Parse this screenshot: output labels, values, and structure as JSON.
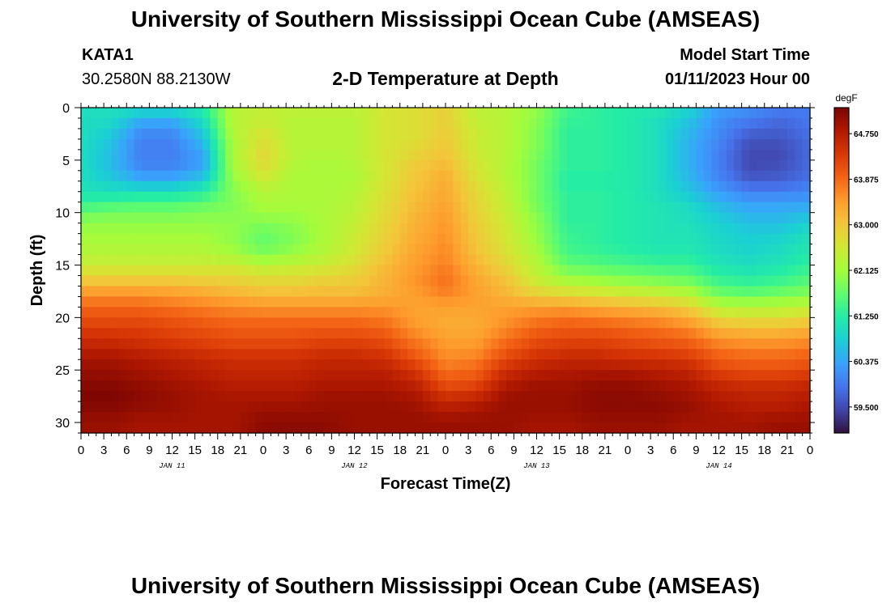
{
  "header": {
    "title": "University of Southern Mississippi Ocean Cube (AMSEAS)",
    "station_id": "KATA1",
    "coordinates": "30.2580N  88.2130W",
    "subtitle": "2-D Temperature at Depth",
    "model_start_label": "Model Start Time",
    "model_start_value": "01/11/2023 Hour 00"
  },
  "footer": {
    "title": "University of Southern Mississippi Ocean Cube (AMSEAS)"
  },
  "chart_data": {
    "type": "heatmap",
    "xlabel": "Forecast Time(Z)",
    "ylabel": "Depth (ft)",
    "xlim": [
      0,
      96
    ],
    "ylim": [
      0,
      31
    ],
    "y_inverted": true,
    "x_tick_labels": [
      "0",
      "3",
      "6",
      "9",
      "12",
      "15",
      "18",
      "21",
      "0",
      "3",
      "6",
      "9",
      "12",
      "15",
      "18",
      "21",
      "0",
      "3",
      "6",
      "9",
      "12",
      "15",
      "18",
      "21",
      "0",
      "3",
      "6",
      "9",
      "12",
      "15",
      "18",
      "21",
      "0"
    ],
    "x_tick_hours": [
      0,
      3,
      6,
      9,
      12,
      15,
      18,
      21,
      24,
      27,
      30,
      33,
      36,
      39,
      42,
      45,
      48,
      51,
      54,
      57,
      60,
      63,
      66,
      69,
      72,
      75,
      78,
      81,
      84,
      87,
      90,
      93,
      96
    ],
    "day_labels": [
      {
        "label": "JAN 11",
        "hour": 12
      },
      {
        "label": "JAN 12",
        "hour": 36
      },
      {
        "label": "JAN 13",
        "hour": 60
      },
      {
        "label": "JAN 14",
        "hour": 84
      }
    ],
    "y_ticks": [
      0,
      5,
      10,
      15,
      20,
      25,
      30
    ],
    "y_tick_labels": [
      "0",
      "5",
      "10",
      "15",
      "20",
      "25",
      "30"
    ],
    "colorbar": {
      "unit": "degF",
      "vmin": 59.0,
      "vmax": 65.25,
      "ticks": [
        64.75,
        63.875,
        63.0,
        62.125,
        61.25,
        60.375,
        59.5
      ],
      "tick_labels": [
        "64.750",
        "63.875",
        "63.000",
        "62.125",
        "61.250",
        "60.375",
        "59.500"
      ],
      "colors": [
        "#30123b",
        "#4145ab",
        "#4675ed",
        "#39a2fc",
        "#1bcfd4",
        "#24eca6",
        "#61fc6c",
        "#a4fc3b",
        "#d1e834",
        "#f3c63a",
        "#fe9b2d",
        "#f36315",
        "#d93806",
        "#b11901",
        "#7a0402"
      ]
    },
    "depth_rows": [
      0,
      1,
      2,
      3,
      4,
      5,
      6,
      7,
      8,
      9,
      10,
      11,
      12,
      13,
      14,
      15,
      16,
      17,
      18,
      19,
      20,
      21,
      22,
      23,
      24,
      25,
      26,
      27,
      28,
      29,
      30,
      31
    ],
    "time_columns": [
      0,
      4,
      8,
      12,
      16,
      20,
      24,
      28,
      32,
      36,
      40,
      44,
      48,
      52,
      56,
      60,
      64,
      68,
      72,
      76,
      80,
      84,
      88,
      92,
      96
    ],
    "values_degF": [
      [
        61.0,
        61.0,
        61.0,
        61.0,
        61.2,
        62.3,
        62.5,
        62.4,
        62.4,
        62.4,
        62.6,
        62.7,
        62.9,
        62.4,
        62.3,
        62.0,
        61.4,
        61.3,
        61.2,
        61.2,
        60.9,
        60.3,
        60.2,
        60.0,
        60.0
      ],
      [
        61.0,
        61.0,
        60.5,
        60.5,
        61.0,
        62.3,
        62.4,
        62.3,
        62.3,
        62.3,
        62.6,
        62.7,
        62.9,
        62.4,
        62.3,
        62.0,
        61.4,
        61.3,
        61.2,
        61.0,
        60.7,
        60.2,
        60.0,
        59.8,
        59.9
      ],
      [
        61.0,
        60.8,
        60.2,
        60.2,
        60.8,
        62.3,
        62.6,
        62.3,
        62.3,
        62.3,
        62.6,
        62.7,
        62.9,
        62.5,
        62.3,
        61.9,
        61.3,
        61.3,
        61.2,
        61.0,
        60.6,
        60.1,
        59.8,
        59.7,
        59.9
      ],
      [
        61.0,
        60.7,
        60.0,
        60.0,
        60.6,
        62.2,
        62.7,
        62.3,
        62.3,
        62.3,
        62.6,
        62.7,
        63.0,
        62.5,
        62.3,
        61.9,
        61.3,
        61.3,
        61.2,
        61.0,
        60.5,
        60.1,
        59.6,
        59.6,
        59.8
      ],
      [
        61.0,
        60.6,
        60.0,
        60.0,
        60.4,
        62.2,
        62.8,
        62.3,
        62.3,
        62.3,
        62.6,
        62.8,
        63.0,
        62.5,
        62.3,
        61.9,
        61.3,
        61.3,
        61.2,
        61.0,
        60.5,
        60.0,
        59.5,
        59.5,
        59.8
      ],
      [
        61.0,
        60.6,
        60.0,
        60.0,
        60.3,
        62.2,
        62.8,
        62.3,
        62.2,
        62.3,
        62.6,
        62.9,
        63.1,
        62.6,
        62.3,
        61.8,
        61.3,
        61.3,
        61.2,
        61.0,
        60.5,
        60.0,
        59.5,
        59.5,
        59.8
      ],
      [
        61.0,
        60.6,
        60.1,
        60.1,
        60.4,
        62.1,
        62.7,
        62.2,
        62.2,
        62.2,
        62.6,
        63.0,
        63.2,
        62.6,
        62.3,
        61.8,
        61.3,
        61.3,
        61.2,
        61.0,
        60.5,
        60.0,
        59.5,
        59.6,
        59.8
      ],
      [
        61.0,
        60.8,
        60.5,
        60.5,
        60.8,
        62.0,
        62.5,
        62.2,
        62.2,
        62.2,
        62.6,
        63.0,
        63.3,
        62.7,
        62.3,
        61.8,
        61.2,
        61.2,
        61.2,
        61.0,
        60.6,
        60.1,
        59.7,
        59.7,
        59.9
      ],
      [
        61.1,
        61.0,
        61.0,
        61.0,
        61.2,
        61.9,
        62.3,
        62.2,
        62.2,
        62.3,
        62.7,
        63.1,
        63.3,
        62.8,
        62.4,
        61.8,
        61.3,
        61.3,
        61.2,
        61.0,
        60.7,
        60.3,
        60.0,
        60.0,
        60.1
      ],
      [
        61.3,
        61.4,
        61.5,
        61.5,
        61.6,
        61.9,
        62.2,
        62.2,
        62.2,
        62.3,
        62.7,
        63.1,
        63.4,
        62.8,
        62.4,
        61.8,
        61.3,
        61.3,
        61.2,
        61.1,
        60.9,
        60.5,
        60.3,
        60.3,
        60.3
      ],
      [
        61.7,
        61.8,
        61.8,
        61.8,
        61.9,
        61.9,
        62.1,
        62.1,
        62.2,
        62.4,
        62.8,
        63.2,
        63.4,
        62.9,
        62.5,
        61.9,
        61.3,
        61.3,
        61.2,
        61.1,
        61.0,
        60.7,
        60.5,
        60.5,
        60.6
      ],
      [
        62.0,
        62.0,
        62.0,
        62.0,
        62.0,
        62.0,
        61.9,
        62.0,
        62.2,
        62.4,
        62.8,
        63.2,
        63.5,
        62.9,
        62.5,
        62.0,
        61.3,
        61.3,
        61.2,
        61.1,
        61.0,
        60.8,
        60.6,
        60.6,
        60.8
      ],
      [
        62.1,
        62.1,
        62.1,
        62.1,
        62.1,
        62.0,
        61.7,
        61.9,
        62.2,
        62.5,
        62.9,
        63.3,
        63.5,
        63.0,
        62.6,
        62.0,
        61.4,
        61.3,
        61.2,
        61.1,
        61.1,
        60.9,
        60.8,
        60.8,
        61.0
      ],
      [
        62.2,
        62.2,
        62.2,
        62.2,
        62.2,
        62.0,
        61.7,
        61.9,
        62.2,
        62.5,
        62.9,
        63.3,
        63.6,
        63.0,
        62.6,
        62.1,
        61.4,
        61.3,
        61.2,
        61.1,
        61.1,
        60.9,
        60.8,
        60.9,
        61.1
      ],
      [
        62.3,
        62.3,
        62.3,
        62.3,
        62.3,
        62.2,
        61.9,
        62.1,
        62.3,
        62.6,
        63.0,
        63.4,
        63.6,
        63.1,
        62.7,
        62.2,
        61.5,
        61.4,
        61.3,
        61.2,
        61.2,
        61.0,
        60.9,
        61.0,
        61.2
      ],
      [
        62.5,
        62.5,
        62.5,
        62.5,
        62.5,
        62.5,
        62.3,
        62.4,
        62.5,
        62.7,
        63.1,
        63.4,
        63.7,
        63.2,
        62.8,
        62.3,
        61.7,
        61.6,
        61.5,
        61.4,
        61.4,
        61.1,
        61.0,
        61.1,
        61.3
      ],
      [
        62.8,
        62.8,
        62.8,
        62.8,
        62.8,
        62.8,
        62.7,
        62.7,
        62.8,
        62.9,
        63.2,
        63.5,
        63.8,
        63.3,
        63.0,
        62.4,
        62.0,
        61.9,
        61.8,
        61.7,
        61.6,
        61.3,
        61.2,
        61.3,
        61.5
      ],
      [
        63.2,
        63.2,
        63.2,
        63.2,
        63.1,
        63.0,
        62.9,
        62.9,
        63.0,
        63.0,
        63.2,
        63.5,
        63.8,
        63.4,
        63.1,
        62.6,
        62.4,
        62.3,
        62.2,
        62.1,
        62.0,
        61.5,
        61.4,
        61.5,
        61.7
      ],
      [
        63.6,
        63.6,
        63.6,
        63.5,
        63.4,
        63.3,
        63.2,
        63.2,
        63.2,
        63.2,
        63.3,
        63.4,
        63.6,
        63.4,
        63.2,
        63.0,
        62.9,
        62.8,
        62.7,
        62.6,
        62.4,
        61.9,
        61.8,
        61.9,
        62.0
      ],
      [
        63.9,
        63.9,
        63.9,
        63.8,
        63.7,
        63.6,
        63.5,
        63.5,
        63.5,
        63.5,
        63.5,
        63.4,
        63.4,
        63.4,
        63.4,
        63.4,
        63.4,
        63.3,
        63.2,
        63.1,
        62.9,
        62.3,
        62.3,
        62.3,
        62.4
      ],
      [
        64.1,
        64.1,
        64.1,
        64.0,
        63.9,
        63.8,
        63.8,
        63.8,
        63.8,
        63.8,
        63.7,
        63.4,
        63.3,
        63.3,
        63.5,
        63.7,
        63.8,
        63.7,
        63.6,
        63.5,
        63.3,
        62.8,
        62.7,
        62.7,
        62.8
      ],
      [
        64.3,
        64.3,
        64.3,
        64.2,
        64.1,
        64.0,
        64.0,
        64.0,
        64.0,
        64.0,
        63.9,
        63.5,
        63.3,
        63.3,
        63.6,
        63.9,
        64.0,
        64.0,
        63.9,
        63.8,
        63.6,
        63.2,
        63.1,
        63.1,
        63.2
      ],
      [
        64.5,
        64.5,
        64.4,
        64.3,
        64.2,
        64.1,
        64.1,
        64.1,
        64.2,
        64.2,
        64.1,
        63.7,
        63.4,
        63.4,
        63.8,
        64.1,
        64.2,
        64.2,
        64.1,
        64.0,
        63.9,
        63.5,
        63.4,
        63.4,
        63.5
      ],
      [
        64.7,
        64.7,
        64.6,
        64.5,
        64.4,
        64.3,
        64.3,
        64.3,
        64.4,
        64.4,
        64.3,
        63.9,
        63.5,
        63.5,
        64.0,
        64.3,
        64.4,
        64.4,
        64.3,
        64.2,
        64.1,
        63.8,
        63.7,
        63.7,
        63.8
      ],
      [
        64.9,
        64.9,
        64.8,
        64.7,
        64.6,
        64.5,
        64.5,
        64.5,
        64.6,
        64.6,
        64.5,
        64.1,
        63.6,
        63.7,
        64.2,
        64.5,
        64.6,
        64.6,
        64.5,
        64.5,
        64.4,
        64.0,
        63.9,
        63.9,
        64.0
      ],
      [
        65.0,
        65.0,
        64.9,
        64.8,
        64.7,
        64.6,
        64.6,
        64.6,
        64.7,
        64.7,
        64.7,
        64.4,
        63.8,
        63.9,
        64.5,
        64.7,
        64.8,
        64.8,
        64.8,
        64.7,
        64.6,
        64.2,
        64.1,
        64.1,
        64.2
      ],
      [
        65.1,
        65.1,
        65.0,
        64.9,
        64.8,
        64.7,
        64.7,
        64.7,
        64.8,
        64.8,
        64.8,
        64.6,
        64.0,
        64.1,
        64.7,
        64.9,
        64.9,
        65.0,
        65.0,
        64.9,
        64.8,
        64.5,
        64.4,
        64.4,
        64.5
      ],
      [
        65.2,
        65.2,
        65.1,
        65.0,
        64.9,
        64.8,
        64.8,
        64.8,
        64.9,
        64.9,
        64.9,
        64.8,
        64.3,
        64.4,
        64.9,
        65.0,
        65.0,
        65.1,
        65.1,
        65.0,
        64.9,
        64.7,
        64.6,
        64.6,
        64.7
      ],
      [
        65.2,
        65.2,
        65.1,
        65.0,
        64.9,
        64.9,
        64.9,
        64.9,
        65.0,
        65.0,
        65.0,
        64.9,
        64.6,
        64.7,
        65.0,
        65.0,
        65.0,
        65.1,
        65.1,
        65.1,
        65.0,
        64.8,
        64.7,
        64.7,
        64.8
      ],
      [
        65.1,
        65.1,
        65.0,
        65.0,
        64.9,
        64.9,
        65.0,
        65.0,
        65.0,
        65.0,
        65.0,
        65.0,
        64.8,
        64.9,
        65.0,
        65.0,
        65.0,
        65.1,
        65.1,
        65.1,
        65.0,
        64.9,
        64.8,
        64.8,
        64.9
      ],
      [
        65.0,
        65.0,
        64.9,
        64.9,
        64.9,
        64.9,
        65.1,
        65.1,
        65.1,
        65.0,
        65.0,
        65.0,
        65.0,
        65.0,
        65.0,
        64.9,
        64.9,
        65.0,
        65.0,
        65.0,
        64.9,
        64.9,
        64.9,
        65.0,
        65.0
      ],
      [
        65.0,
        65.0,
        64.9,
        64.9,
        64.9,
        64.9,
        65.1,
        65.1,
        65.1,
        65.0,
        65.0,
        65.0,
        65.0,
        65.0,
        65.0,
        64.9,
        64.9,
        65.0,
        65.0,
        65.0,
        64.9,
        64.9,
        64.9,
        65.0,
        65.0
      ]
    ]
  }
}
